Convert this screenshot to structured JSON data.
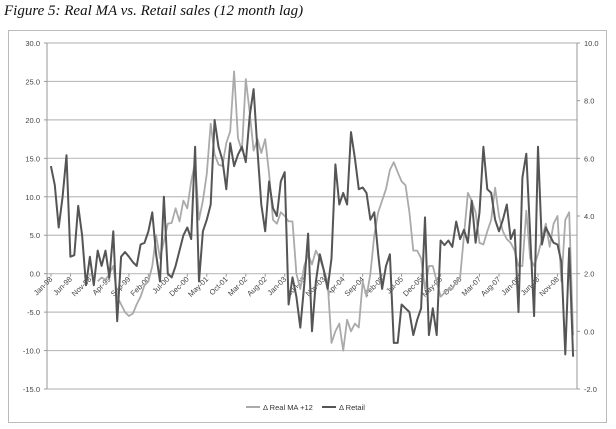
{
  "title": "Figure 5: Real MA vs. Retail sales (12 month lag)",
  "chart_data": {
    "type": "line",
    "title": "Figure 5: Real MA vs. Retail sales (12 month lag)",
    "xlabel": "",
    "ylabel_left": "",
    "ylabel_right": "",
    "grid": true,
    "legend_position": "bottom",
    "x_tick_labels": [
      "Jan-98",
      "Jun-98",
      "Nov-98",
      "Apr-99",
      "Sep-99",
      "Feb-00",
      "Jul-00",
      "Dec-00",
      "May-01",
      "Oct-01",
      "Mar-02",
      "Aug-02",
      "Jan-03",
      "Jun-03",
      "Nov-03",
      "Apr-04",
      "Sep-04",
      "Feb-05",
      "Jul-05",
      "Dec-05",
      "May-06",
      "Oct-06",
      "Mar-07",
      "Aug-07",
      "Jan-08",
      "Jun-08",
      "Nov-08"
    ],
    "x_tick_every_months": 5,
    "y_left": {
      "min": -15,
      "max": 30,
      "step": 5,
      "tick_labels": [
        "30.0",
        "25.0",
        "20.0",
        "15.0",
        "10.0",
        "5.0",
        "0.0",
        "-5.0",
        "-10.0",
        "-15.0"
      ]
    },
    "y_right": {
      "min": -2,
      "max": 10,
      "step": 2,
      "tick_labels": [
        "10.0",
        "8.0",
        "6.0",
        "4.0",
        "2.0",
        "0.0",
        "-2.0"
      ]
    },
    "series": [
      {
        "name": "Δ Real MA +12",
        "axis": "left",
        "color": "#aaaaaa",
        "values": [
          null,
          null,
          null,
          null,
          null,
          null,
          null,
          null,
          null,
          null,
          null,
          null,
          -1,
          -0.5,
          -0.8,
          0,
          1,
          -3,
          -4,
          -5,
          -5.5,
          -5.2,
          -4,
          -3,
          -1.5,
          -1,
          1,
          5,
          2,
          4.2,
          6.5,
          6.6,
          8.5,
          6.8,
          9.5,
          8.5,
          12,
          14.5,
          7,
          9.5,
          13,
          19.5,
          15.5,
          14.2,
          14,
          17,
          18.5,
          26.3,
          17.6,
          16,
          25.3,
          21,
          16,
          17.5,
          15.7,
          17.5,
          13,
          7,
          6.5,
          8,
          7.5,
          6.8,
          6.8,
          0,
          -2,
          1,
          2.5,
          1.2,
          3,
          2,
          0.5,
          -1,
          -9,
          -7.5,
          -6.5,
          -10,
          -6,
          -7.5,
          -6.5,
          -7,
          -1,
          -3,
          0,
          5,
          8,
          9.5,
          11,
          13.5,
          14.5,
          13.2,
          12,
          11.5,
          8,
          3,
          3,
          2,
          -2,
          1,
          1,
          -1,
          -3,
          -2.5,
          -2,
          -2,
          -1,
          -0.5,
          5,
          10.5,
          9.5,
          8,
          4,
          3.8,
          5.5,
          7,
          11.2,
          7.5,
          5.5,
          4.5,
          4,
          3,
          1,
          1,
          8.2,
          2,
          1,
          2.5,
          4.5,
          6.5,
          3.5,
          6.5,
          7.5,
          -1,
          7,
          8,
          -8
        ]
      },
      {
        "name": "Δ Retail",
        "axis": "right",
        "color": "#555555",
        "values": [
          5.73,
          5.07,
          3.6,
          4.67,
          6.11,
          2.59,
          2.64,
          4.35,
          3.33,
          1.6,
          2.59,
          1.6,
          2.8,
          2.27,
          2.8,
          1.87,
          3.47,
          0.35,
          2.59,
          2.75,
          2.59,
          2.4,
          2.27,
          3.01,
          3.07,
          3.47,
          4.13,
          2.67,
          1.73,
          4.67,
          2.0,
          1.87,
          2.27,
          2.8,
          3.33,
          3.6,
          3.2,
          6.4,
          1.73,
          3.47,
          3.87,
          4.4,
          7.33,
          6.4,
          5.95,
          4.93,
          6.53,
          5.73,
          6.13,
          6.4,
          5.87,
          7.47,
          8.4,
          6.27,
          4.4,
          3.47,
          5.2,
          4.27,
          4.0,
          5.2,
          5.52,
          0.93,
          1.87,
          1.2,
          0.13,
          1.6,
          3.39,
          0.0,
          1.73,
          2.67,
          2.13,
          1.47,
          2.53,
          5.79,
          4.4,
          4.8,
          4.4,
          6.91,
          6.0,
          4.93,
          4.99,
          4.8,
          3.87,
          4.13,
          2.67,
          1.47,
          2.27,
          2.67,
          -0.4,
          -0.4,
          0.93,
          0.8,
          0.67,
          -0.13,
          0.4,
          0.8,
          3.95,
          -0.13,
          0.8,
          -0.13,
          3.15,
          2.99,
          3.15,
          2.93,
          3.81,
          3.2,
          3.52,
          3.07,
          4.53,
          3.07,
          4.13,
          6.4,
          4.93,
          4.8,
          3.87,
          3.47,
          3.87,
          4.4,
          3.2,
          3.52,
          0.67,
          5.33,
          6.16,
          3.33,
          0.53,
          6.4,
          3.01,
          3.6,
          3.33,
          3.07,
          3.01,
          2.4,
          -0.8,
          2.88,
          -0.88
        ]
      }
    ]
  }
}
